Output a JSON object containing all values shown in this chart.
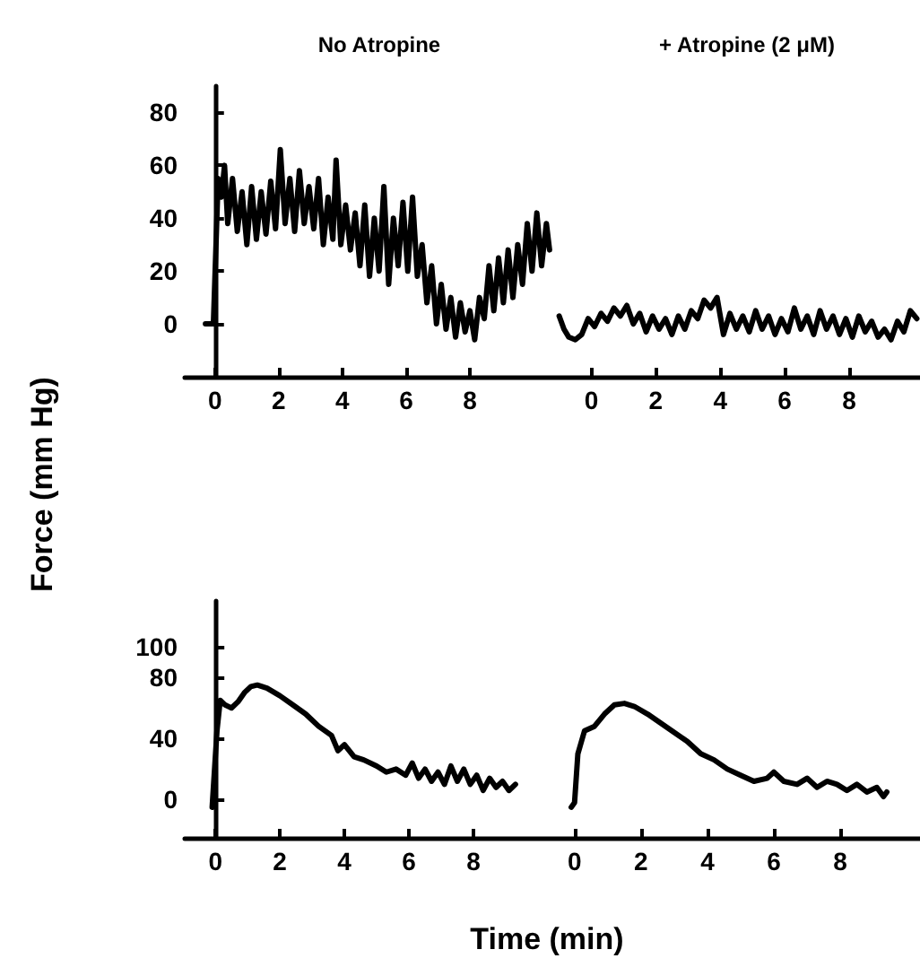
{
  "chart_data": [
    {
      "type": "line",
      "title": "No Atropine",
      "ylabel": "Force (mm Hg)",
      "marker": "none",
      "line_style": "solid",
      "xlim": [
        -0.95,
        10.7
      ],
      "xticks": [
        0,
        2,
        4,
        6,
        8
      ],
      "ylim": [
        -20,
        90
      ],
      "yticks": [
        0,
        20,
        40,
        60,
        80
      ],
      "series": [
        {
          "color": "#000000",
          "x": [
            -0.3,
            -0.05,
            0.1,
            0.2,
            0.3,
            0.4,
            0.55,
            0.7,
            0.85,
            1.0,
            1.15,
            1.3,
            1.45,
            1.6,
            1.75,
            1.9,
            2.05,
            2.2,
            2.35,
            2.5,
            2.65,
            2.8,
            2.95,
            3.1,
            3.25,
            3.4,
            3.55,
            3.7,
            3.8,
            3.95,
            4.1,
            4.25,
            4.4,
            4.55,
            4.7,
            4.85,
            5.0,
            5.15,
            5.3,
            5.45,
            5.6,
            5.75,
            5.9,
            6.05,
            6.2,
            6.35,
            6.5,
            6.65,
            6.8,
            6.95,
            7.1,
            7.25,
            7.4,
            7.55,
            7.7,
            7.85,
            8.0,
            8.15,
            8.3,
            8.45,
            8.6,
            8.75,
            8.9,
            9.05,
            9.2,
            9.35,
            9.5,
            9.65,
            9.8,
            9.95,
            10.1,
            10.25,
            10.4,
            10.5
          ],
          "values": [
            0,
            0,
            55,
            48,
            60,
            38,
            55,
            35,
            50,
            30,
            52,
            32,
            50,
            34,
            54,
            36,
            66,
            38,
            55,
            35,
            58,
            38,
            52,
            36,
            55,
            30,
            48,
            32,
            62,
            30,
            45,
            28,
            42,
            22,
            45,
            18,
            40,
            20,
            52,
            15,
            40,
            22,
            46,
            20,
            48,
            18,
            30,
            8,
            22,
            0,
            15,
            -2,
            10,
            -5,
            8,
            -3,
            5,
            -6,
            10,
            2,
            22,
            5,
            25,
            8,
            28,
            10,
            30,
            15,
            38,
            20,
            42,
            22,
            38,
            28
          ]
        }
      ]
    },
    {
      "type": "line",
      "title": "+ Atropine (2 μM)",
      "marker": "none",
      "line_style": "solid",
      "tick_labels": "x",
      "xlim": [
        -1.1,
        10.2
      ],
      "xticks": [
        0,
        2,
        4,
        6,
        8
      ],
      "ylim": [
        -20,
        80
      ],
      "yticks": [
        0,
        20,
        40,
        60,
        80
      ],
      "series": [
        {
          "color": "#000000",
          "x": [
            -1.0,
            -0.85,
            -0.7,
            -0.5,
            -0.3,
            -0.1,
            0.1,
            0.3,
            0.5,
            0.7,
            0.9,
            1.1,
            1.3,
            1.5,
            1.7,
            1.9,
            2.1,
            2.3,
            2.5,
            2.7,
            2.9,
            3.1,
            3.3,
            3.5,
            3.7,
            3.9,
            4.1,
            4.3,
            4.5,
            4.7,
            4.9,
            5.1,
            5.3,
            5.5,
            5.7,
            5.9,
            6.1,
            6.3,
            6.5,
            6.7,
            6.9,
            7.1,
            7.3,
            7.5,
            7.7,
            7.9,
            8.1,
            8.3,
            8.5,
            8.7,
            8.9,
            9.1,
            9.3,
            9.5,
            9.7,
            9.9,
            10.1
          ],
          "values": [
            3,
            -2,
            -5,
            -6,
            -4,
            2,
            -1,
            4,
            1,
            6,
            3,
            7,
            0,
            4,
            -3,
            3,
            -2,
            2,
            -4,
            3,
            -2,
            5,
            2,
            9,
            6,
            10,
            -4,
            4,
            -2,
            3,
            -3,
            5,
            -2,
            3,
            -4,
            2,
            -3,
            6,
            -2,
            3,
            -4,
            5,
            -2,
            3,
            -4,
            2,
            -5,
            3,
            -3,
            1,
            -5,
            -2,
            -6,
            1,
            -3,
            5,
            2
          ]
        }
      ]
    },
    {
      "type": "line",
      "xlabel": "Time (min)",
      "marker": "none",
      "line_style": "solid",
      "xlim": [
        -0.95,
        10
      ],
      "xticks": [
        0,
        2,
        4,
        6,
        8
      ],
      "ylim": [
        -25,
        130
      ],
      "yticks": [
        0,
        40,
        80,
        100
      ],
      "series": [
        {
          "color": "#000000",
          "x": [
            -0.1,
            0.05,
            0.15,
            0.3,
            0.5,
            0.7,
            0.9,
            1.1,
            1.3,
            1.6,
            2.0,
            2.4,
            2.8,
            3.2,
            3.6,
            3.8,
            4.0,
            4.3,
            4.6,
            5.0,
            5.3,
            5.6,
            5.9,
            6.1,
            6.3,
            6.5,
            6.7,
            6.9,
            7.1,
            7.3,
            7.5,
            7.7,
            7.9,
            8.1,
            8.3,
            8.5,
            8.7,
            8.9,
            9.1,
            9.3
          ],
          "values": [
            -5,
            45,
            65,
            62,
            60,
            64,
            70,
            74,
            75,
            73,
            68,
            62,
            56,
            48,
            42,
            32,
            36,
            28,
            26,
            22,
            18,
            20,
            16,
            24,
            14,
            20,
            12,
            18,
            10,
            22,
            12,
            20,
            10,
            16,
            6,
            14,
            8,
            12,
            6,
            10
          ]
        }
      ]
    },
    {
      "type": "line",
      "marker": "none",
      "line_style": "solid",
      "tick_labels": "x",
      "xlim": [
        -1.1,
        10.4
      ],
      "xticks": [
        0,
        2,
        4,
        6,
        8
      ],
      "ylim": [
        -25,
        100
      ],
      "yticks": [
        0,
        40,
        80,
        100
      ],
      "series": [
        {
          "color": "#000000",
          "x": [
            -0.1,
            0.0,
            0.1,
            0.3,
            0.6,
            0.9,
            1.2,
            1.5,
            1.8,
            2.2,
            2.6,
            3.0,
            3.4,
            3.8,
            4.2,
            4.6,
            5.0,
            5.4,
            5.8,
            6.0,
            6.3,
            6.7,
            7.0,
            7.3,
            7.6,
            7.9,
            8.2,
            8.5,
            8.8,
            9.1,
            9.3,
            9.4
          ],
          "values": [
            -5,
            -2,
            30,
            45,
            48,
            56,
            62,
            63,
            61,
            56,
            50,
            44,
            38,
            30,
            26,
            20,
            16,
            12,
            14,
            18,
            12,
            10,
            14,
            8,
            12,
            10,
            6,
            10,
            5,
            8,
            2,
            5
          ]
        }
      ]
    }
  ]
}
